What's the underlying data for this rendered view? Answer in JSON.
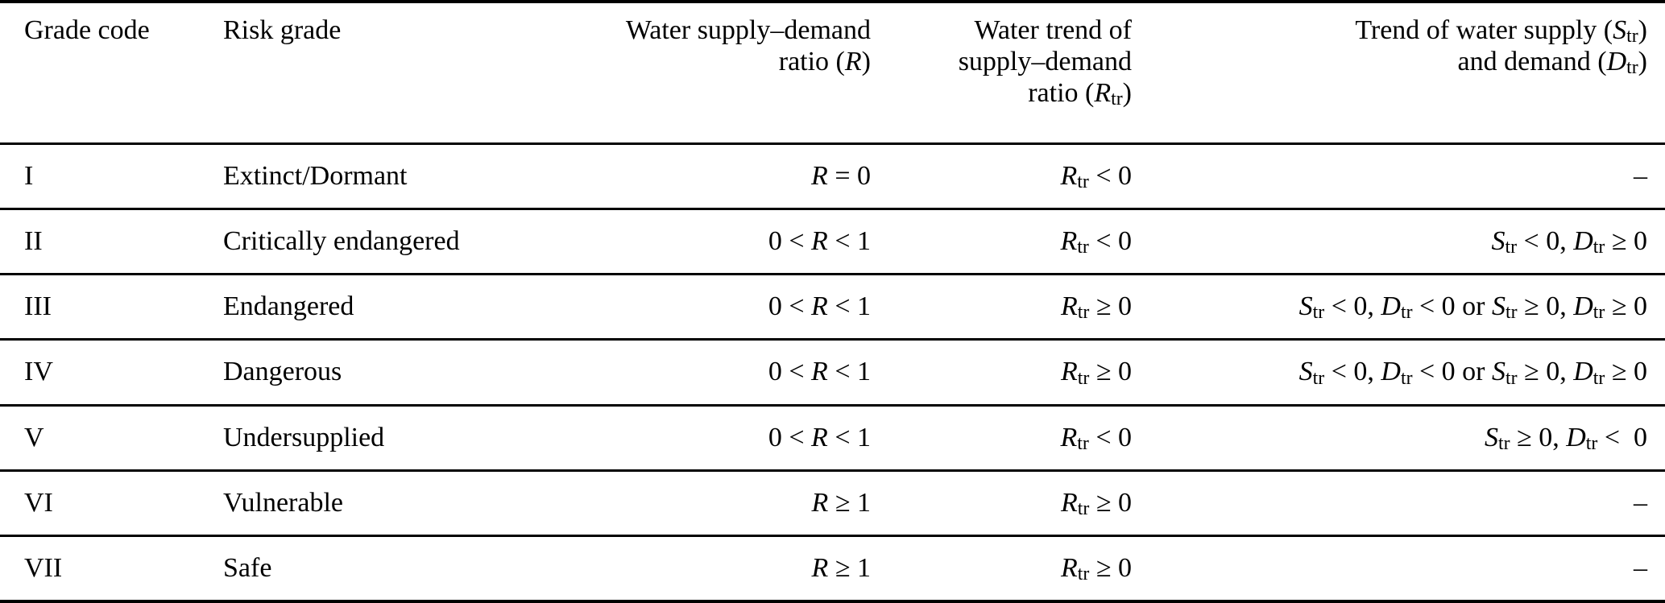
{
  "colors": {
    "text": "#000000",
    "background": "#ffffff",
    "rule": "#000000"
  },
  "table": {
    "columns": [
      {
        "id": "grade_code",
        "align": "left",
        "label_lines": [
          "Grade code"
        ]
      },
      {
        "id": "risk_grade",
        "align": "left",
        "label_lines": [
          "Risk grade"
        ]
      },
      {
        "id": "ratio",
        "align": "right",
        "label_lines": [
          "Water supply–demand",
          "ratio (*R*)"
        ]
      },
      {
        "id": "ratio_trend",
        "align": "right",
        "label_lines": [
          "Water trend of",
          "supply–demand",
          "ratio (*R*_tr_)"
        ]
      },
      {
        "id": "supply_demand_trend",
        "align": "right",
        "label_lines": [
          "Trend of water supply (*S*_tr_)",
          "and demand (*D*_tr_)"
        ]
      }
    ],
    "rows": [
      {
        "grade_code": "I",
        "risk_grade": "Extinct/Dormant",
        "ratio": "*R* = 0",
        "ratio_trend": "*R*_tr_ < 0",
        "supply_demand_trend": "–"
      },
      {
        "grade_code": "II",
        "risk_grade": "Critically endangered",
        "ratio": "0 < *R* < 1",
        "ratio_trend": "*R*_tr_ < 0",
        "supply_demand_trend": "*S*_tr_ < 0, *D*_tr_ ≥ 0"
      },
      {
        "grade_code": "III",
        "risk_grade": "Endangered",
        "ratio": "0 < *R* < 1",
        "ratio_trend": "*R*_tr_ ≥ 0",
        "supply_demand_trend": "*S*_tr_ < 0, *D*_tr_ < 0 or *S*_tr_ ≥ 0, *D*_tr_ ≥ 0"
      },
      {
        "grade_code": "IV",
        "risk_grade": "Dangerous",
        "ratio": "0 < *R* < 1",
        "ratio_trend": "*R*_tr_ ≥ 0",
        "supply_demand_trend": "*S*_tr_ < 0, *D*_tr_ < 0 or *S*_tr_ ≥ 0, *D*_tr_ ≥ 0"
      },
      {
        "grade_code": "V",
        "risk_grade": "Undersupplied",
        "ratio": "0 < *R* < 1",
        "ratio_trend": "*R*_tr_ < 0",
        "supply_demand_trend": "*S*_tr_ ≥ 0, *D*_tr_ <  0"
      },
      {
        "grade_code": "VI",
        "risk_grade": "Vulnerable",
        "ratio": "*R* ≥ 1",
        "ratio_trend": "*R*_tr_ ≥ 0",
        "supply_demand_trend": "–"
      },
      {
        "grade_code": "VII",
        "risk_grade": "Safe",
        "ratio": "*R* ≥ 1",
        "ratio_trend": "*R*_tr_ ≥ 0",
        "supply_demand_trend": "–"
      }
    ]
  }
}
